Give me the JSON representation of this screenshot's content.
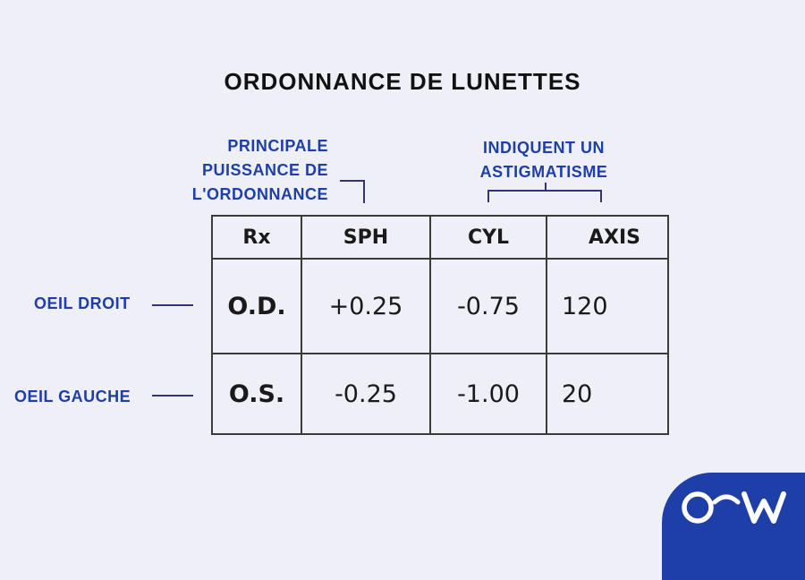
{
  "title": "ORDONNANCE DE LUNETTES",
  "annotations": {
    "sph": [
      "PRINCIPALE",
      "PUISSANCE DE",
      "L'ORDONNANCE"
    ],
    "astigmatism": [
      "INDIQUENT UN",
      "ASTIGMATISME"
    ],
    "od": "OEIL DROIT",
    "os": "OEIL GAUCHE"
  },
  "table": {
    "headers": [
      "Rx",
      "SPH",
      "CYL",
      "AXIS"
    ],
    "rows": [
      {
        "label": "O.D.",
        "sph": "+0.25",
        "cyl": "-0.75",
        "axis": "120"
      },
      {
        "label": "O.S.",
        "sph": "-0.25",
        "cyl": "-1.00",
        "axis": "20"
      }
    ]
  },
  "colors": {
    "accent": "#1f3fa8",
    "background": "#eeeff7",
    "text": "#111111"
  },
  "logo": {
    "icon": "ocw-logo-icon"
  }
}
